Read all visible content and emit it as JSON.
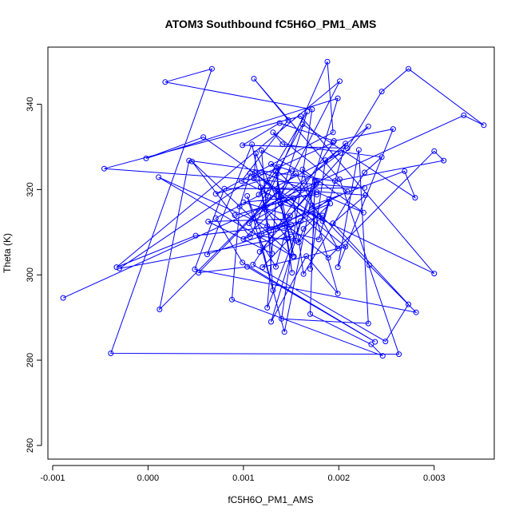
{
  "chart_data": {
    "type": "scatter",
    "title": "ATOM3 Southbound fC5H6O_PM1_AMS",
    "xlabel": "fC5H6O_PM1_AMS",
    "ylabel": "Theta (K)",
    "xlim": [
      -0.00105,
      0.00363
    ],
    "ylim": [
      256.8,
      353.4
    ],
    "xticks": [
      -0.001,
      0.0,
      0.001,
      0.002,
      0.003
    ],
    "xtick_labels": [
      "-0.001",
      "0.000",
      "0.001",
      "0.002",
      "0.003"
    ],
    "yticks": [
      260,
      280,
      300,
      320,
      340
    ],
    "ytick_labels": [
      "260",
      "280",
      "300",
      "320",
      "340"
    ],
    "grid": false,
    "series_color": "#0000ff",
    "series": [
      {
        "x": [
          -0.00089,
          0.00331,
          0.00352,
          0.00273,
          0.00245,
          0.00209,
          0.00099,
          0.00138,
          0.00195,
          0.00257,
          0.00199,
          0.00221,
          0.00231,
          0.0014,
          0.00172,
          0.00018,
          0.00067,
          -0.00039,
          0.00263,
          0.00201,
          0.00111,
          0.00147,
          0.00098,
          0.003,
          0.0016,
          -0.00046,
          0.00227,
          0.0008,
          0.00049,
          0.00281,
          0.00232,
          0.00129,
          0.00151,
          0.00071,
          0.00194,
          0.00188,
          0.00107,
          0.00046,
          0.00152,
          0.00011,
          0.00125,
          0.00179,
          0.00207,
          0.001,
          0.00191,
          0.00163,
          0.00158,
          0.00183,
          0.00062,
          0.00109,
          0.00123,
          0.00146,
          0.00151,
          0.00134,
          0.00153,
          0.00136,
          0.00012,
          0.00043,
          0.00196,
          0.0031,
          0.003,
          0.00189,
          0.00121,
          0.00126,
          0.00107,
          0.00096,
          0.00088,
          0.00246,
          0.00234,
          0.0017,
          0.00175,
          0.00143,
          0.00104,
          0.00119,
          0.00209,
          0.00131,
          0.00141,
          0.00245,
          0.00227,
          0.00163,
          0.00152,
          0.00091,
          0.00177,
          0.00226,
          0.00162,
          0.00199,
          0.00166,
          0.00129,
          0.00199,
          -2e-05,
          0.00058,
          0.00183,
          0.0019,
          0.00117,
          0.00176,
          0.00106,
          0.00134,
          0.00148,
          0.00063,
          0.0013,
          0.00118,
          0.00228,
          0.00194,
          0.00273,
          0.00249,
          0.0011,
          0.00194,
          0.00111,
          0.00113,
          0.00155,
          0.00117,
          0.00131,
          0.00119,
          0.00177,
          0.00125,
          0.00137,
          0.00116,
          0.00167,
          0.00139,
          0.00201,
          -0.00033,
          0.0005,
          0.0015,
          0.00127,
          0.0016,
          0.00172,
          0.00269,
          0.0028,
          0.00162,
          0.0011,
          0.00202,
          0.00071,
          0.00099,
          0.00238,
          0.00104,
          0.00053,
          0.00155,
          0.00199,
          0.00112,
          0.00207,
          0.0012,
          0.0015,
          -0.0003,
          0.00119,
          0.00177,
          0.001,
          0.00149,
          0.00231,
          0.00186,
          0.0017,
          0.00175,
          0.00139
        ],
        "y": [
          294.6,
          337.4,
          335.1,
          348.3,
          343.0,
          329.7,
          330.4,
          335.6,
          331.4,
          334.2,
          301.8,
          329.3,
          288.6,
          289.7,
          338.8,
          345.2,
          348.3,
          281.6,
          281.4,
          322.4,
          346.0,
          336.3,
          322.0,
          300.3,
          337.2,
          324.9,
          320.4,
          320.2,
          301.3,
          291.2,
          302.3,
          326.0,
          324.3,
          319.0,
          333.4,
          350.0,
          308.9,
          326.6,
          304.3,
          322.9,
          311.4,
          308.3,
          330.8,
          308.4,
          316.7,
          310.8,
          307.6,
          313.9,
          304.8,
          330.6,
          315.4,
          308.5,
          300.5,
          324.2,
          304.3,
          319.7,
          291.9,
          326.8,
          322.0,
          326.8,
          329.0,
          304.0,
          315.9,
          318.5,
          323.8,
          316.0,
          294.2,
          281.0,
          283.7,
          290.8,
          322.2,
          286.6,
          318.5,
          309.6,
          319.5,
          333.4,
          330.6,
          327.6,
          324.0,
          300.2,
          318.0,
          314.0,
          319.4,
          314.6,
          324.7,
          295.6,
          304.4,
          289.0,
          341.4,
          327.3,
          332.3,
          312.6,
          317.8,
          305.4,
          321.2,
          312.1,
          301.9,
          313.1,
          312.5,
          305.0,
          320.5,
          318.7,
          312.1,
          293.1,
          284.4,
          302.4,
          331.0,
          322.6,
          328.5,
          308.0,
          309.1,
          296.4,
          329.2,
          322.1,
          292.3,
          325.3,
          318.8,
          338.3,
          318.3,
          345.4,
          301.8,
          309.2,
          311.8,
          310.4,
          312.6,
          316.3,
          324.3,
          318.1,
          335.3,
          313.3,
          328.6,
          313.3,
          302.9,
          284.3,
          301.9,
          300.5,
          323.8,
          306.2,
          323.9,
          306.6,
          301.8,
          309.0,
          301.5,
          324.1,
          318.8,
          317.0,
          313.9,
          334.8,
          326.9,
          301.4,
          314.2,
          316.7
        ]
      }
    ]
  }
}
